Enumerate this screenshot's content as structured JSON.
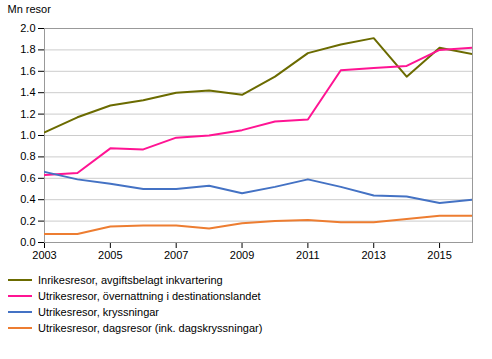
{
  "chart_data": {
    "type": "line",
    "ylabel": "Mn resor",
    "x": [
      2003,
      2004,
      2005,
      2006,
      2007,
      2008,
      2009,
      2010,
      2011,
      2012,
      2013,
      2014,
      2015,
      2016
    ],
    "series": [
      {
        "name": "Inrikesresor, avgiftsbelagt inkvartering",
        "color": "#6b6b00",
        "values": [
          1.03,
          1.17,
          1.28,
          1.33,
          1.4,
          1.42,
          1.38,
          1.55,
          1.77,
          1.85,
          1.91,
          1.55,
          1.82,
          1.76
        ]
      },
      {
        "name": "Utrikesresor, övernattning i destinationslandet",
        "color": "#ff1493",
        "values": [
          0.63,
          0.65,
          0.88,
          0.87,
          0.98,
          1.0,
          1.05,
          1.13,
          1.15,
          1.61,
          1.63,
          1.65,
          1.8,
          1.82
        ]
      },
      {
        "name": "Utrikesresor, kryssningar",
        "color": "#4472c4",
        "values": [
          0.66,
          0.59,
          0.55,
          0.5,
          0.5,
          0.53,
          0.46,
          0.52,
          0.59,
          0.52,
          0.44,
          0.43,
          0.37,
          0.4
        ]
      },
      {
        "name": "Utrikesresor, dagsresor (ink. dagskryssningar)",
        "color": "#ed7d31",
        "values": [
          0.08,
          0.08,
          0.15,
          0.16,
          0.16,
          0.13,
          0.18,
          0.2,
          0.21,
          0.19,
          0.19,
          0.22,
          0.25,
          0.25
        ]
      }
    ],
    "xlim": [
      2003,
      2016
    ],
    "xticks": [
      2003,
      2005,
      2007,
      2009,
      2011,
      2013,
      2015
    ],
    "ylim": [
      0.0,
      2.0
    ],
    "yticks": [
      {
        "value": 0.0,
        "label": "0.0"
      },
      {
        "value": 0.2,
        "label": "0.2"
      },
      {
        "value": 0.4,
        "label": "0.4"
      },
      {
        "value": 0.6,
        "label": "0.6"
      },
      {
        "value": 0.8,
        "label": "0.8"
      },
      {
        "value": 1.0,
        "label": "1.0"
      },
      {
        "value": 1.2,
        "label": "1.2"
      },
      {
        "value": 1.4,
        "label": "1.4"
      },
      {
        "value": 1.6,
        "label": "1.6"
      },
      {
        "value": 1.8,
        "label": "1.8"
      },
      {
        "value": 2.0,
        "label": "2.0"
      }
    ],
    "grid": "y",
    "legend": "bottom"
  }
}
